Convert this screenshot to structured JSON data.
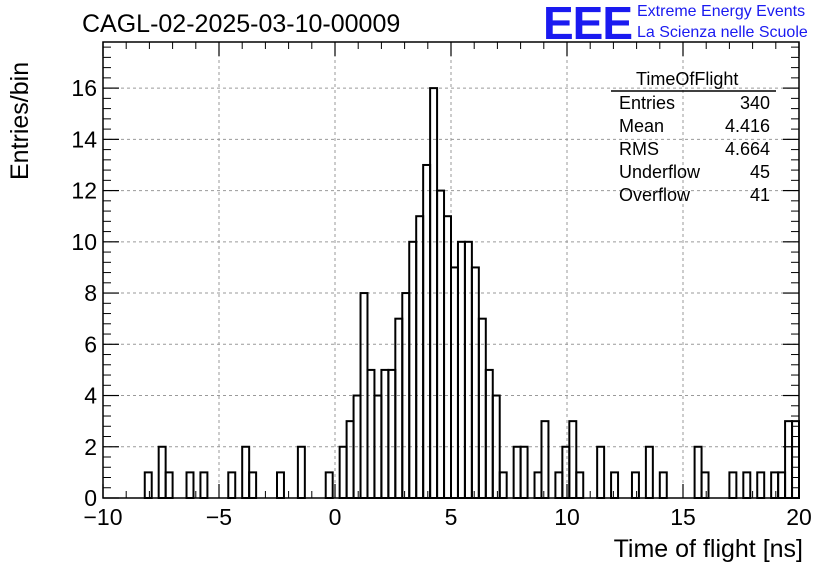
{
  "header": {
    "run_title": "CAGL-02-2025-03-10-00009",
    "logo_text": "EEE",
    "logo_line1": "Extreme Energy Events",
    "logo_line2": "La Scienza nelle Scuole"
  },
  "stats_box": {
    "title": "TimeOfFlight",
    "rows": [
      {
        "name": "Entries",
        "value": "340"
      },
      {
        "name": "Mean",
        "value": "4.416"
      },
      {
        "name": "RMS",
        "value": "4.664"
      },
      {
        "name": "Underflow",
        "value": "45"
      },
      {
        "name": "Overflow",
        "value": "41"
      }
    ]
  },
  "colors": {
    "logo": "#1a1af0",
    "grid": "#9a9a9a",
    "line": "#000000"
  },
  "chart_data": {
    "type": "bar",
    "style": "step-histogram",
    "xlabel": "Time of flight [ns]",
    "ylabel": "Entries/bin",
    "xlim": [
      -10,
      20
    ],
    "ylim": [
      0,
      17.8
    ],
    "grid": true,
    "bin_width": 0.3,
    "x_ticks": [
      -10,
      -5,
      0,
      5,
      10,
      15,
      20
    ],
    "y_ticks": [
      0,
      2,
      4,
      6,
      8,
      10,
      12,
      14,
      16
    ],
    "bins": [
      [
        -8.2,
        1
      ],
      [
        -7.6,
        2
      ],
      [
        -7.3,
        1
      ],
      [
        -6.4,
        1
      ],
      [
        -5.8,
        1
      ],
      [
        -4.6,
        1
      ],
      [
        -4.0,
        2
      ],
      [
        -3.7,
        1
      ],
      [
        -2.5,
        1
      ],
      [
        -1.6,
        2
      ],
      [
        -0.4,
        1
      ],
      [
        0.2,
        2
      ],
      [
        0.5,
        3
      ],
      [
        0.8,
        4
      ],
      [
        1.1,
        8
      ],
      [
        1.4,
        5
      ],
      [
        1.7,
        4
      ],
      [
        2.0,
        5
      ],
      [
        2.3,
        5
      ],
      [
        2.6,
        7
      ],
      [
        2.9,
        8
      ],
      [
        3.2,
        10
      ],
      [
        3.5,
        11
      ],
      [
        3.8,
        13
      ],
      [
        4.1,
        16
      ],
      [
        4.4,
        12
      ],
      [
        4.7,
        11
      ],
      [
        5.0,
        9
      ],
      [
        5.3,
        10
      ],
      [
        5.6,
        10
      ],
      [
        5.9,
        9
      ],
      [
        6.2,
        7
      ],
      [
        6.5,
        5
      ],
      [
        6.8,
        4
      ],
      [
        7.1,
        1
      ],
      [
        7.7,
        2
      ],
      [
        8.0,
        2
      ],
      [
        8.6,
        1
      ],
      [
        8.9,
        3
      ],
      [
        9.5,
        1
      ],
      [
        9.8,
        2
      ],
      [
        10.1,
        3
      ],
      [
        10.4,
        1
      ],
      [
        11.3,
        2
      ],
      [
        11.9,
        1
      ],
      [
        12.8,
        1
      ],
      [
        13.4,
        2
      ],
      [
        14.0,
        1
      ],
      [
        15.5,
        2
      ],
      [
        15.8,
        1
      ],
      [
        17.0,
        1
      ],
      [
        17.6,
        1
      ],
      [
        18.2,
        1
      ],
      [
        18.8,
        1
      ],
      [
        19.1,
        1
      ],
      [
        19.4,
        3
      ],
      [
        19.7,
        3
      ]
    ]
  }
}
